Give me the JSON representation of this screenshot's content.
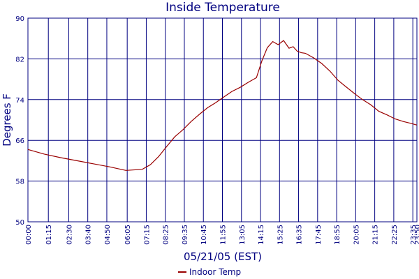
{
  "chart_data": {
    "type": "line",
    "title": "Inside Temperature",
    "xlabel": "05/21/05 (EST)",
    "ylabel": "Degrees F",
    "ylim": [
      50,
      90
    ],
    "xlim_minutes": [
      0,
      1430
    ],
    "yticks": [
      "50",
      "58",
      "66",
      "74",
      "82",
      "90"
    ],
    "xticks": [
      "00:00",
      "01:15",
      "02:30",
      "03:40",
      "04:50",
      "06:05",
      "07:15",
      "08:25",
      "09:35",
      "10:45",
      "11:55",
      "13:05",
      "14:15",
      "15:25",
      "16:35",
      "17:45",
      "18:55",
      "20:05",
      "21:15",
      "22:25",
      "23:35",
      "23:50"
    ],
    "grid": true,
    "line_color": "#990000",
    "grid_color": "#000080",
    "legend_position": "bottom-center",
    "series": [
      {
        "name": "Indoor Temp",
        "x": [
          "00:00",
          "01:00",
          "02:00",
          "03:00",
          "04:00",
          "05:00",
          "06:00",
          "07:00",
          "07:30",
          "08:00",
          "08:30",
          "09:00",
          "09:30",
          "10:00",
          "10:30",
          "11:00",
          "11:30",
          "12:00",
          "12:30",
          "13:00",
          "13:30",
          "14:00",
          "14:20",
          "14:40",
          "15:00",
          "15:20",
          "15:40",
          "16:00",
          "16:15",
          "16:30",
          "16:45",
          "17:00",
          "17:30",
          "18:00",
          "18:30",
          "19:00",
          "19:30",
          "20:00",
          "20:30",
          "21:00",
          "21:30",
          "22:00",
          "22:30",
          "23:00",
          "23:30",
          "23:50"
        ],
        "values": [
          64.2,
          63.3,
          62.6,
          62.0,
          61.4,
          60.8,
          60.1,
          60.3,
          61.2,
          62.8,
          64.8,
          66.7,
          68.1,
          69.7,
          71.1,
          72.4,
          73.4,
          74.5,
          75.6,
          76.4,
          77.4,
          78.3,
          81.6,
          84.2,
          85.4,
          84.8,
          85.6,
          84.1,
          84.4,
          83.5,
          83.2,
          83.1,
          82.2,
          81.1,
          79.6,
          77.8,
          76.5,
          75.2,
          74.0,
          73.0,
          71.7,
          71.0,
          70.2,
          69.7,
          69.3,
          69.0
        ]
      }
    ]
  }
}
